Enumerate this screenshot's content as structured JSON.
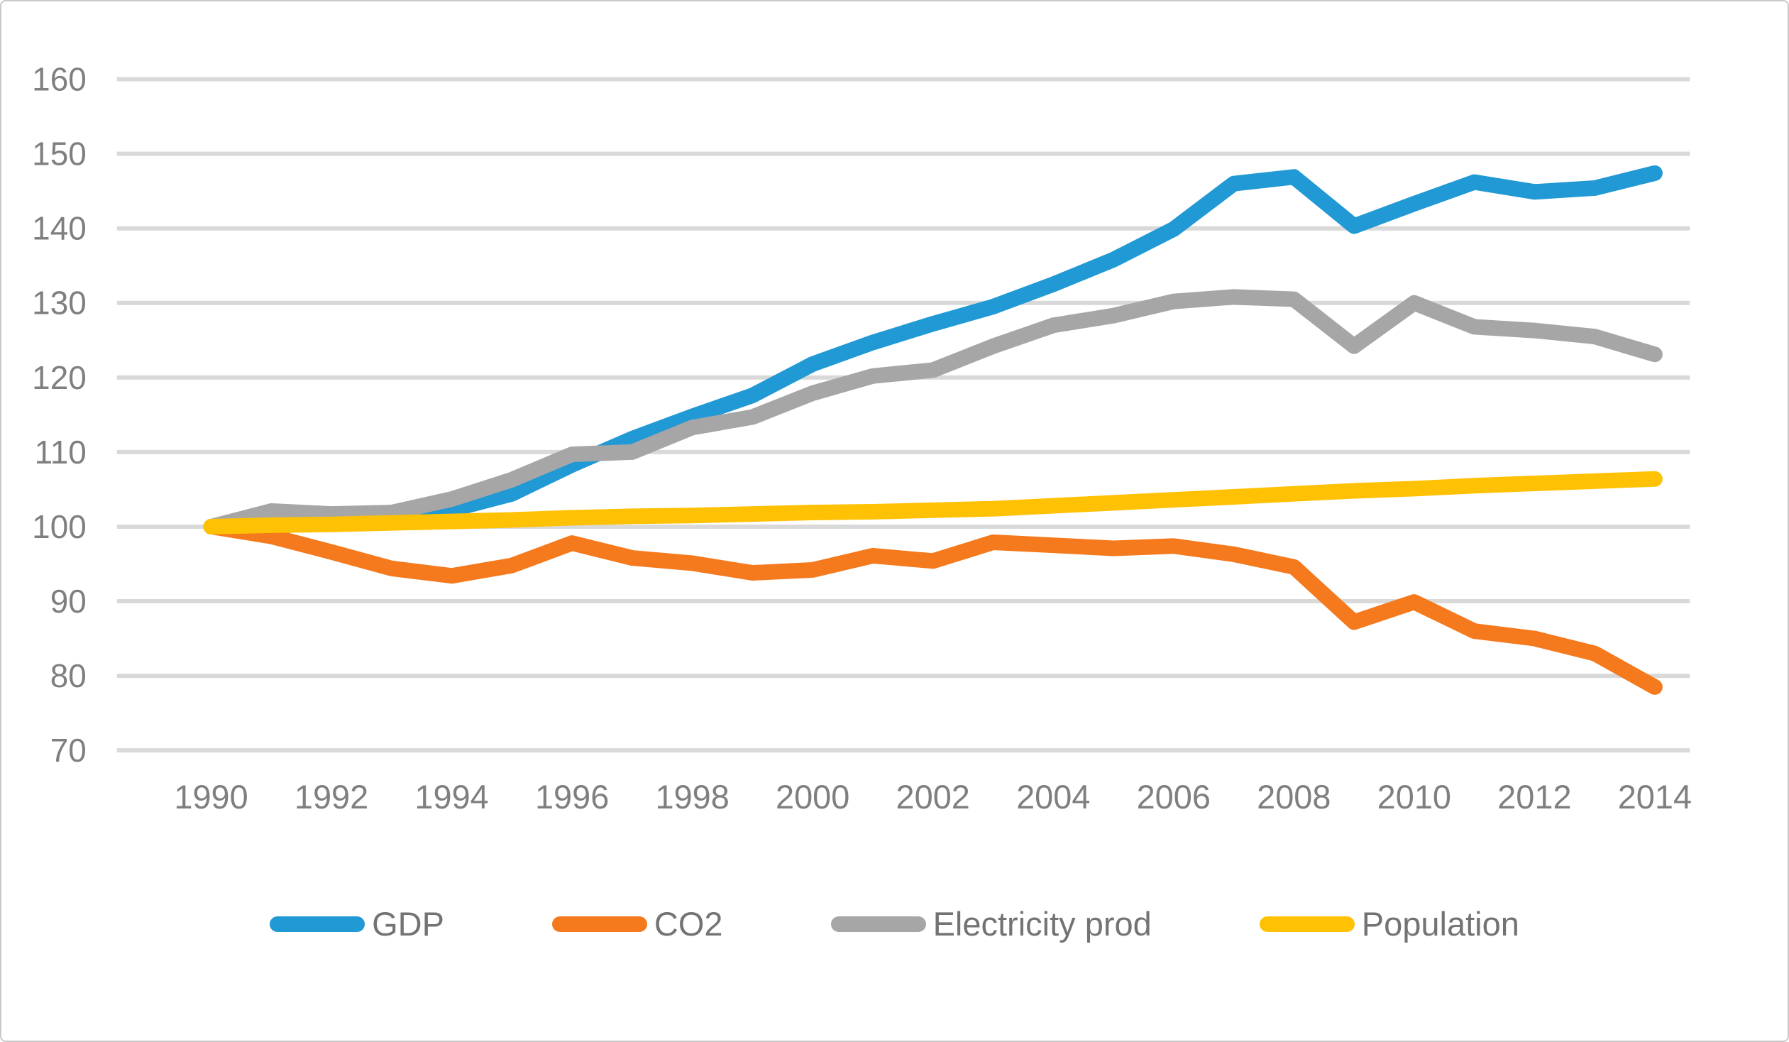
{
  "chart_data": {
    "type": "line",
    "title": "",
    "xlabel": "",
    "ylabel": "",
    "x": [
      1990,
      1991,
      1992,
      1993,
      1994,
      1995,
      1996,
      1997,
      1998,
      1999,
      2000,
      2001,
      2002,
      2003,
      2004,
      2005,
      2006,
      2007,
      2008,
      2009,
      2010,
      2011,
      2012,
      2013,
      2014
    ],
    "x_tick_years": [
      1990,
      1992,
      1994,
      1996,
      1998,
      2000,
      2002,
      2004,
      2006,
      2008,
      2010,
      2012,
      2014
    ],
    "ylim": [
      70,
      160
    ],
    "y_ticks": [
      160,
      150,
      140,
      130,
      120,
      110,
      100,
      90,
      80,
      70
    ],
    "grid": true,
    "legend_position": "bottom",
    "series": [
      {
        "name": "GDP",
        "color": "#2199d5",
        "values": [
          100,
          100.4,
          100.9,
          101.9,
          102.3,
          104.4,
          108.3,
          111.8,
          114.8,
          117.6,
          121.8,
          124.7,
          127.2,
          129.5,
          132.5,
          135.8,
          139.9,
          146.0,
          146.9,
          140.3,
          143.3,
          146.2,
          144.9,
          145.4,
          147.4
        ]
      },
      {
        "name": "CO2",
        "color": "#f5791d",
        "values": [
          100,
          98.7,
          96.6,
          94.4,
          93.4,
          94.8,
          97.8,
          95.8,
          95.1,
          93.8,
          94.2,
          96.1,
          95.4,
          97.9,
          97.5,
          97.1,
          97.4,
          96.3,
          94.6,
          87.2,
          89.9,
          86.0,
          85.0,
          83.0,
          78.5
        ]
      },
      {
        "name": "Electricity prod",
        "color": "#a6a6a6",
        "values": [
          100,
          102.1,
          101.7,
          101.9,
          103.7,
          106.3,
          109.7,
          110.0,
          113.3,
          114.7,
          117.9,
          120.2,
          121.0,
          124.2,
          127.0,
          128.3,
          130.2,
          130.8,
          130.5,
          124.2,
          130.0,
          126.8,
          126.3,
          125.5,
          123.1
        ]
      },
      {
        "name": "Population",
        "color": "#ffc103",
        "values": [
          100,
          100.2,
          100.3,
          100.5,
          100.7,
          100.9,
          101.2,
          101.4,
          101.5,
          101.7,
          101.9,
          102.0,
          102.2,
          102.4,
          102.8,
          103.2,
          103.6,
          104.0,
          104.4,
          104.8,
          105.1,
          105.5,
          105.8,
          106.1,
          106.4
        ]
      }
    ],
    "gridline_color": "#d9d9d9",
    "axis_label_color": "#7f7f7f"
  }
}
